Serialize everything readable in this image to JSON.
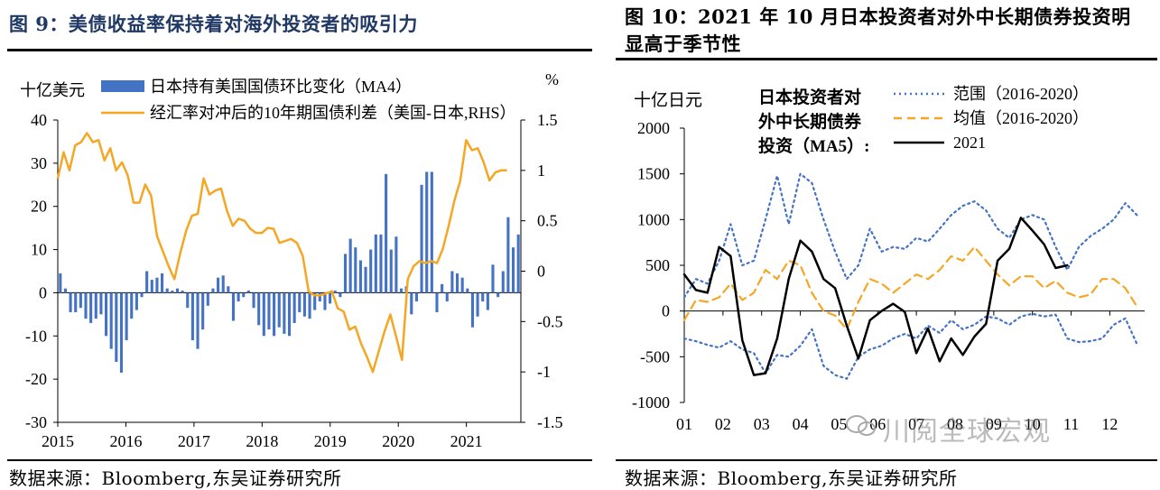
{
  "left": {
    "title": "图 9：美债收益率保持着对海外投资者的吸引力",
    "source": "数据来源：Bloomberg,东吴证券研究所",
    "chart_data": {
      "type": "bar+line",
      "ylabel": "十亿美元",
      "y2label": "%",
      "ylim": [
        -30,
        40
      ],
      "y2lim": [
        -1.5,
        1.5
      ],
      "yticks": [
        -30,
        -20,
        -10,
        0,
        10,
        20,
        30,
        40
      ],
      "y2ticks": [
        "-1.5",
        "-1",
        "-0.5",
        "0",
        "0.5",
        "1",
        "1.5"
      ],
      "xticks": [
        "2015",
        "2016",
        "2017",
        "2018",
        "2019",
        "2020",
        "2021"
      ],
      "x_start": 2015.0,
      "x_end": 2021.8,
      "legend": [
        {
          "name": "日本持有美国国债环比变化（MA4）",
          "color": "#4472c4",
          "kind": "bar"
        },
        {
          "name": "经汇率对冲后的10年期国债利差（美国-日本,RHS）",
          "color": "#f5a623",
          "kind": "line"
        }
      ],
      "bars": [
        4.5,
        1.0,
        -4.5,
        -4.5,
        -3.5,
        -6.0,
        -7.0,
        -6.0,
        -5.0,
        -10.0,
        -13.0,
        -16.0,
        -18.5,
        -11.0,
        -6.0,
        -4.0,
        -1.0,
        5.0,
        3.0,
        3.5,
        4.5,
        1.0,
        0.5,
        1.0,
        0.5,
        -3.5,
        -11.0,
        -13.0,
        -8.5,
        -3.0,
        1.0,
        3.5,
        4.0,
        1.5,
        -6.5,
        -2.0,
        -1.0,
        0.5,
        -3.5,
        -7.5,
        -10.0,
        -8.5,
        -10.0,
        -8.0,
        -9.5,
        -10.0,
        -7.0,
        -4.5,
        -5.5,
        -6.0,
        -4.0,
        -2.0,
        -4.0,
        -2.5,
        0.5,
        -1.0,
        9.0,
        12.5,
        10.5,
        7.5,
        6.0,
        10.0,
        13.5,
        13.5,
        27.5,
        10.0,
        13.0,
        1.0,
        1.5,
        -5.0,
        -2.0,
        25.0,
        28.0,
        28.0,
        -4.5,
        2.0,
        -2.0,
        5.0,
        4.5,
        3.5,
        1.0,
        -8.0,
        -5.5,
        -2.0,
        -4.0,
        6.5,
        -1.0,
        5.0,
        17.5,
        10.5,
        13.5
      ],
      "line": [
        0.92,
        1.18,
        1.0,
        1.25,
        1.28,
        1.37,
        1.28,
        1.3,
        1.1,
        1.22,
        1.0,
        1.08,
        0.95,
        0.68,
        0.68,
        0.86,
        0.75,
        0.35,
        0.2,
        0.05,
        -0.08,
        0.18,
        0.4,
        0.55,
        0.57,
        0.92,
        0.76,
        0.8,
        0.82,
        0.6,
        0.45,
        0.52,
        0.5,
        0.42,
        0.38,
        0.38,
        0.43,
        0.42,
        0.28,
        0.3,
        0.32,
        0.28,
        0.15,
        -0.2,
        -0.24,
        -0.24,
        -0.22,
        -0.2,
        -0.37,
        -0.4,
        -0.58,
        -0.55,
        -0.72,
        -0.85,
        -1.0,
        -0.8,
        -0.6,
        -0.43,
        -0.65,
        -0.88,
        -0.08,
        0.05,
        0.1,
        0.08,
        0.1,
        0.08,
        0.22,
        0.45,
        0.7,
        0.9,
        1.3,
        1.2,
        1.22,
        1.08,
        0.9,
        0.98,
        1.0,
        1.0
      ]
    }
  },
  "right": {
    "title": "图 10：2021 年 10 月日本投资者对外中长期债券投资明显高于季节性",
    "source": "数据来源：Bloomberg,东吴证券研究所",
    "watermark": "川阅全球宏观",
    "chart_data": {
      "type": "line",
      "ylabel": "十亿日元",
      "legend_title": [
        "日本投资者对",
        "外中长期债券",
        "投资（MA5）:"
      ],
      "ylim": [
        -1000,
        2000
      ],
      "yticks": [
        -1000,
        -500,
        0,
        500,
        1000,
        1500,
        2000
      ],
      "xticks": [
        "01",
        "02",
        "03",
        "04",
        "05",
        "06",
        "07",
        "08",
        "09",
        "10",
        "11",
        "12"
      ],
      "x_range": [
        1,
        12.9
      ],
      "series": [
        {
          "name": "范围（2016-2020）",
          "style": "dotted",
          "color": "#4472c4",
          "x": [
            1,
            1.3,
            1.6,
            1.9,
            2.2,
            2.5,
            2.8,
            3.1,
            3.4,
            3.7,
            4.0,
            4.3,
            4.6,
            4.9,
            5.2,
            5.5,
            5.8,
            6.1,
            6.4,
            6.7,
            7.0,
            7.3,
            7.6,
            7.9,
            8.2,
            8.5,
            8.8,
            9.1,
            9.4,
            9.7,
            10.0,
            10.3,
            10.6,
            10.9,
            11.2,
            11.5,
            11.8,
            12.1,
            12.4,
            12.7
          ],
          "y": [
            150,
            350,
            300,
            550,
            950,
            500,
            550,
            1000,
            1480,
            950,
            1500,
            1400,
            1000,
            650,
            350,
            500,
            900,
            650,
            700,
            680,
            800,
            760,
            900,
            1050,
            1150,
            1200,
            1100,
            900,
            800,
            1000,
            1050,
            1000,
            700,
            450,
            700,
            820,
            900,
            1000,
            1180,
            1050
          ]
        },
        {
          "name": "范围（2016-2020）",
          "style": "dotted",
          "color": "#4472c4",
          "x": [
            1,
            1.3,
            1.6,
            1.9,
            2.2,
            2.5,
            2.8,
            3.1,
            3.4,
            3.7,
            4.0,
            4.3,
            4.6,
            4.9,
            5.2,
            5.5,
            5.8,
            6.1,
            6.4,
            6.7,
            7.0,
            7.3,
            7.6,
            7.9,
            8.2,
            8.5,
            8.8,
            9.1,
            9.4,
            9.7,
            10.0,
            10.3,
            10.6,
            10.9,
            11.2,
            11.5,
            11.8,
            12.1,
            12.4,
            12.7
          ],
          "y": [
            -300,
            -330,
            -370,
            -400,
            -330,
            -420,
            -460,
            -680,
            -480,
            -500,
            -380,
            -200,
            -600,
            -700,
            -740,
            -500,
            -420,
            -380,
            -300,
            -250,
            -300,
            -160,
            -240,
            -100,
            -200,
            -150,
            -60,
            -80,
            -150,
            -60,
            -30,
            -60,
            -40,
            -300,
            -340,
            -330,
            -300,
            -150,
            -80,
            -360
          ]
        },
        {
          "name": "均值（2016-2020）",
          "style": "dashed",
          "color": "#f5a623",
          "x": [
            1,
            1.3,
            1.6,
            1.9,
            2.2,
            2.5,
            2.8,
            3.1,
            3.4,
            3.7,
            4.0,
            4.3,
            4.6,
            4.9,
            5.2,
            5.5,
            5.8,
            6.1,
            6.4,
            6.7,
            7.0,
            7.3,
            7.6,
            7.9,
            8.2,
            8.5,
            8.8,
            9.1,
            9.4,
            9.7,
            10.0,
            10.3,
            10.6,
            10.9,
            11.2,
            11.5,
            11.8,
            12.1,
            12.4,
            12.7
          ],
          "y": [
            -100,
            120,
            100,
            150,
            300,
            120,
            200,
            450,
            350,
            550,
            500,
            200,
            0,
            -50,
            -200,
            100,
            350,
            300,
            200,
            300,
            400,
            350,
            450,
            600,
            550,
            700,
            550,
            400,
            280,
            380,
            380,
            250,
            330,
            200,
            150,
            180,
            350,
            350,
            250,
            50
          ]
        },
        {
          "name": "2021",
          "style": "solid",
          "color": "#000000",
          "x": [
            1,
            1.3,
            1.6,
            1.9,
            2.2,
            2.5,
            2.8,
            3.1,
            3.4,
            3.7,
            4.0,
            4.3,
            4.6,
            4.9,
            5.2,
            5.5,
            5.8,
            6.1,
            6.4,
            6.7,
            7.0,
            7.3,
            7.6,
            7.9,
            8.2,
            8.5,
            8.8,
            9.1,
            9.4,
            9.7,
            10.0,
            10.3,
            10.6,
            10.9
          ],
          "y": [
            400,
            230,
            200,
            700,
            600,
            -320,
            -700,
            -680,
            -300,
            350,
            770,
            650,
            350,
            250,
            -160,
            -520,
            -100,
            0,
            80,
            -10,
            -460,
            -190,
            -550,
            -300,
            -480,
            -280,
            -140,
            550,
            680,
            1020,
            880,
            730,
            470,
            500
          ]
        }
      ]
    }
  }
}
